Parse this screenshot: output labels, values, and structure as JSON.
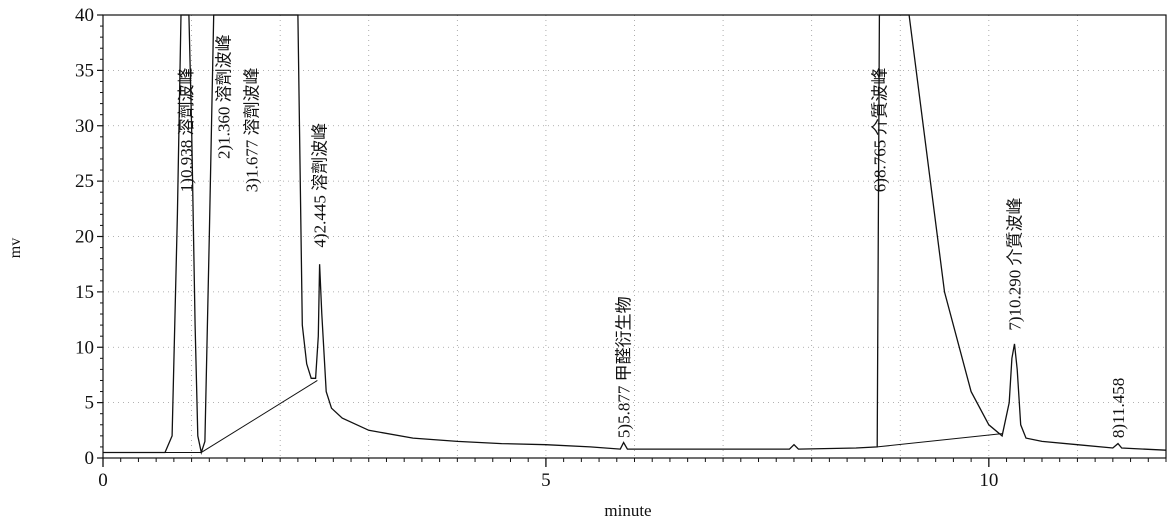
{
  "chart_data": {
    "type": "line",
    "xlabel": "minute",
    "ylabel": "mv",
    "xlim": [
      0,
      12
    ],
    "ylim": [
      0,
      40
    ],
    "x_major_ticks": [
      0,
      5,
      10
    ],
    "x_tick_labels": [
      "0",
      "5",
      "10"
    ],
    "y_ticks": [
      0,
      5,
      10,
      15,
      20,
      25,
      30,
      35,
      40
    ],
    "y_tick_labels": [
      "0",
      "5",
      "10",
      "15",
      "20",
      "25",
      "30",
      "35",
      "40"
    ],
    "grid": "dotted",
    "trace_color": "#111111",
    "series": [
      {
        "x": [
          0.0,
          0.7,
          0.78,
          0.84,
          0.88,
          0.91,
          0.94,
          0.97,
          1.0,
          1.04,
          1.07,
          1.11,
          1.15,
          1.2,
          1.25,
          1.3,
          1.33,
          1.35,
          1.38,
          1.42,
          1.45,
          1.55,
          1.7,
          1.85,
          1.96,
          2.0,
          2.05,
          2.1,
          2.15,
          2.2,
          2.25,
          2.3,
          2.35,
          2.4,
          2.43,
          2.445,
          2.47,
          2.52,
          2.58,
          2.7,
          3.0,
          3.5,
          4.0,
          4.5,
          5.0,
          5.5,
          5.84,
          5.877,
          5.92,
          6.2,
          7.0,
          7.75,
          7.8,
          7.85,
          8.5,
          8.74,
          8.765,
          8.8,
          8.9,
          9.1,
          9.5,
          9.8,
          10.0,
          10.15,
          10.23,
          10.26,
          10.29,
          10.32,
          10.36,
          10.42,
          10.6,
          11.0,
          11.4,
          11.458,
          11.5,
          12.0
        ],
        "y": [
          0.5,
          0.5,
          2.0,
          22.0,
          40.0,
          40.0,
          40.0,
          40.0,
          30.0,
          12.0,
          2.0,
          0.5,
          1.5,
          20.0,
          40.0,
          40.0,
          40.0,
          40.0,
          40.0,
          40.0,
          40.0,
          40.0,
          40.0,
          40.0,
          40.0,
          40.0,
          40.0,
          40.0,
          40.0,
          40.0,
          12.0,
          8.5,
          7.2,
          7.2,
          11.0,
          17.5,
          13.0,
          6.0,
          4.5,
          3.6,
          2.5,
          1.8,
          1.5,
          1.3,
          1.2,
          1.0,
          0.8,
          1.4,
          0.8,
          0.8,
          0.8,
          0.8,
          1.2,
          0.8,
          0.9,
          1.0,
          40.0,
          40.0,
          40.0,
          40.0,
          15.0,
          6.0,
          3.0,
          2.0,
          5.0,
          9.0,
          10.3,
          8.0,
          3.0,
          1.8,
          1.5,
          1.2,
          0.9,
          1.3,
          0.9,
          0.7
        ]
      }
    ],
    "baselines": [
      {
        "x": [
          0.7,
          1.11
        ],
        "y": [
          0.5,
          0.5
        ]
      },
      {
        "x": [
          1.11,
          2.42
        ],
        "y": [
          0.5,
          7.0
        ]
      },
      {
        "x": [
          8.74,
          10.15
        ],
        "y": [
          1.0,
          2.2
        ]
      }
    ],
    "peak_labels": [
      {
        "x": 0.938,
        "y": 24,
        "text": "1)0.938 溶劑波峰"
      },
      {
        "x": 1.36,
        "y": 27,
        "text": "2)1.360 溶劑波峰"
      },
      {
        "x": 1.677,
        "y": 24,
        "text": "3)1.677 溶劑波峰"
      },
      {
        "x": 2.445,
        "y": 19,
        "text": "4)2.445 溶劑波峰"
      },
      {
        "x": 5.877,
        "y": 1.8,
        "text": "5)5.877 甲醛衍生物"
      },
      {
        "x": 8.765,
        "y": 24,
        "text": "6)8.765 介質波峰"
      },
      {
        "x": 10.29,
        "y": 11.5,
        "text": "7)10.290 介質波峰"
      },
      {
        "x": 11.458,
        "y": 1.8,
        "text": "8)11.458"
      }
    ]
  }
}
